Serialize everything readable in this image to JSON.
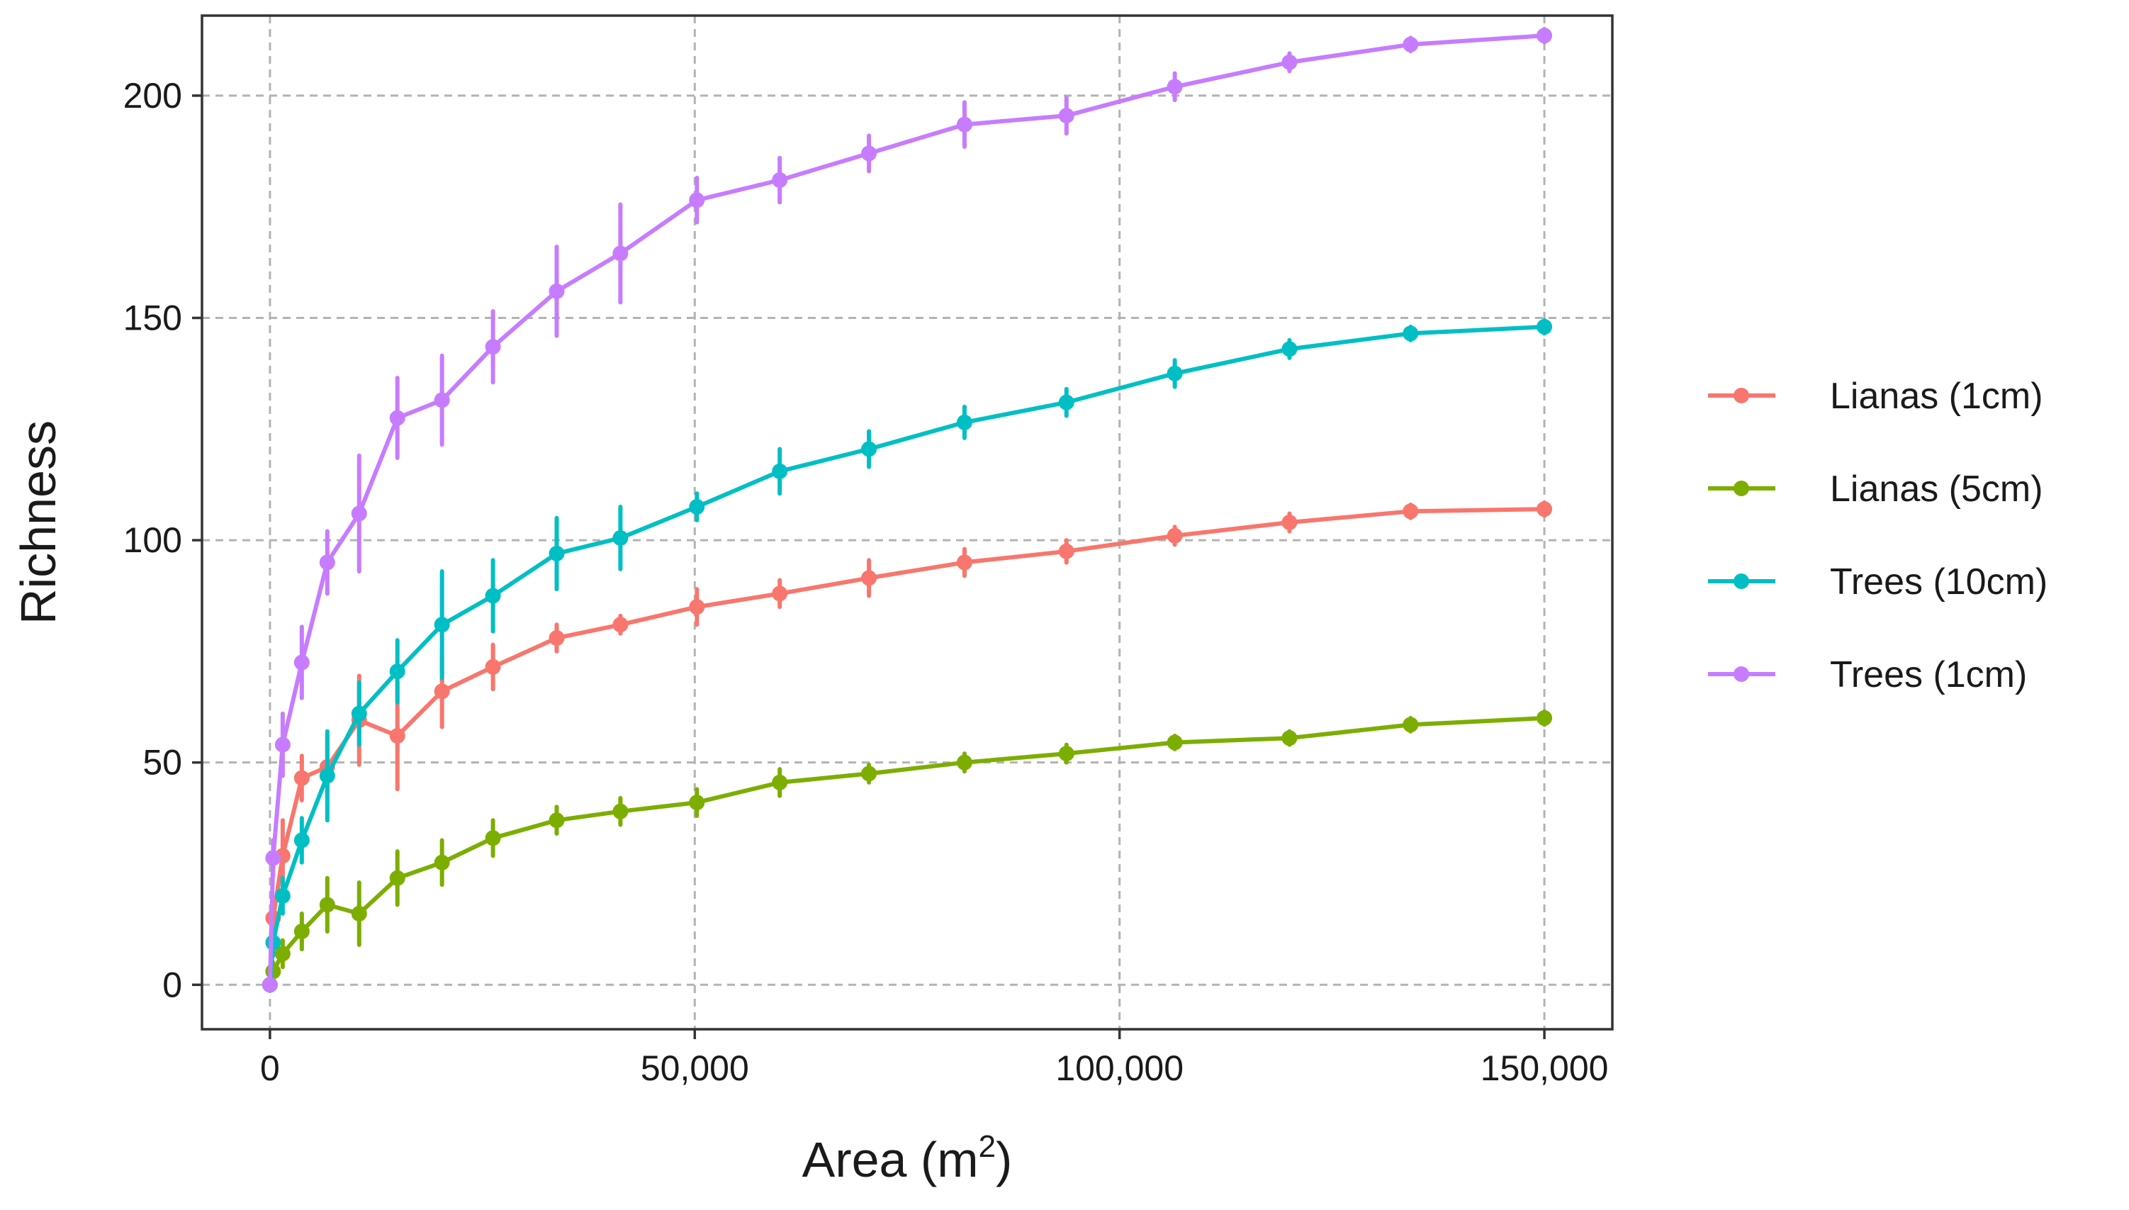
{
  "chart_data": {
    "type": "line",
    "title": "",
    "xlabel": "Area (m",
    "xlabel_superscript": "2",
    "xlabel_suffix": ")",
    "ylabel": "Richness",
    "xlim": [
      -8000,
      158000
    ],
    "ylim": [
      -10,
      218
    ],
    "x_ticks": [
      0,
      50000,
      100000,
      150000
    ],
    "x_tick_labels": [
      "0",
      "50,000",
      "100,000",
      "150,000"
    ],
    "y_ticks": [
      0,
      50,
      100,
      150,
      200
    ],
    "y_tick_labels": [
      "0",
      "50",
      "100",
      "150",
      "200"
    ],
    "grid": "major, dashed",
    "legend_position": "right",
    "series": [
      {
        "name": "Lianas (1cm)",
        "color": "#F8766D",
        "x": [
          0,
          375,
          1500,
          3750,
          6750,
          10500,
          15000,
          20250,
          26250,
          33750,
          41250,
          50250,
          60000,
          70500,
          81750,
          93750,
          106500,
          120000,
          134250,
          150000
        ],
        "y": [
          0,
          15,
          29,
          46.5,
          49,
          59.5,
          56,
          66,
          71.5,
          78,
          81,
          85,
          88,
          91.5,
          95,
          97.5,
          101,
          104,
          106.5,
          107
        ],
        "err": [
          0,
          3,
          8,
          5,
          7,
          10,
          12,
          8,
          5,
          3,
          2,
          4,
          3,
          4,
          3,
          2.5,
          2,
          2,
          1.5,
          1.5
        ]
      },
      {
        "name": "Lianas (5cm)",
        "color": "#7CAE00",
        "x": [
          0,
          375,
          1500,
          3750,
          6750,
          10500,
          15000,
          20250,
          26250,
          33750,
          41250,
          50250,
          60000,
          70500,
          81750,
          93750,
          106500,
          120000,
          134250,
          150000
        ],
        "y": [
          0,
          3,
          7,
          12,
          18,
          16,
          24,
          27.5,
          33,
          37,
          39,
          41,
          45.5,
          47.5,
          50,
          52,
          54.5,
          55.5,
          58.5,
          60
        ],
        "err": [
          0,
          2,
          3,
          4,
          6,
          7,
          6,
          5,
          4,
          3,
          3,
          3,
          3,
          2,
          2,
          2,
          1.5,
          1.5,
          1.5,
          1.5
        ]
      },
      {
        "name": "Trees (10cm)",
        "color": "#00BFC4",
        "x": [
          0,
          375,
          1500,
          3750,
          6750,
          10500,
          15000,
          20250,
          26250,
          33750,
          41250,
          50250,
          60000,
          70500,
          81750,
          93750,
          106500,
          120000,
          134250,
          150000
        ],
        "y": [
          0,
          9.5,
          20,
          32.5,
          47,
          61,
          70.5,
          81,
          87.5,
          97,
          100.5,
          107.5,
          115.5,
          120.5,
          126.5,
          131,
          137.5,
          143,
          146.5,
          148
        ],
        "err": [
          0,
          3,
          4,
          5,
          10,
          7,
          7,
          12,
          8,
          8,
          7,
          3,
          5,
          4,
          3.5,
          3,
          3,
          2,
          1.5,
          1.5
        ]
      },
      {
        "name": "Trees (1cm)",
        "color": "#C77CFF",
        "x": [
          0,
          375,
          1500,
          3750,
          6750,
          10500,
          15000,
          20250,
          26250,
          33750,
          41250,
          50250,
          60000,
          70500,
          81750,
          93750,
          106500,
          120000,
          134250,
          150000
        ],
        "y": [
          0,
          28.5,
          54,
          72.5,
          95,
          106,
          127.5,
          131.5,
          143.5,
          156,
          164.5,
          176.5,
          181,
          187,
          193.5,
          195.5,
          202,
          207.5,
          211.5,
          213.5
        ],
        "err": [
          0,
          4,
          7,
          8,
          7,
          13,
          9,
          10,
          8,
          10,
          11,
          5,
          5,
          4,
          5,
          4,
          3,
          2,
          1.5,
          1.5
        ]
      }
    ]
  }
}
